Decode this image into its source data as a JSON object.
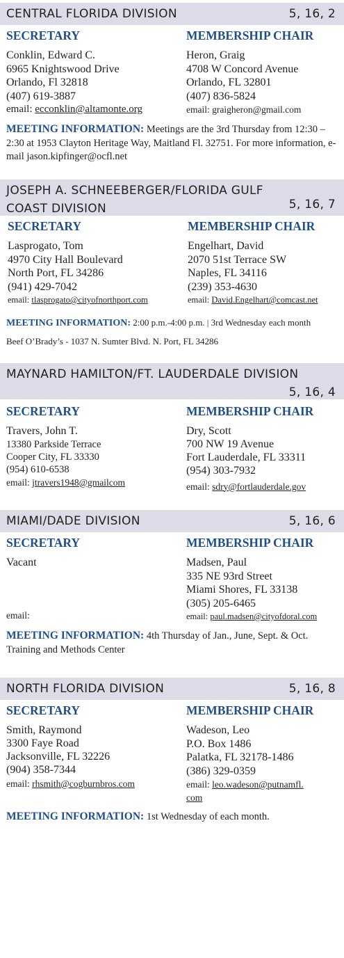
{
  "divisions": [
    {
      "name": "CENTRAL FLORIDA DIVISION",
      "codes": "5, 16, 2",
      "secretary_heading": "SECRETARY",
      "chair_heading": "MEMBERSHIP CHAIR",
      "secretary": [
        "Conklin, Edward C.",
        "6965 Knightswood Drive",
        "Orlando, Fl 32818",
        "(407) 619-3887"
      ],
      "secretary_email_label": "email: ",
      "secretary_email": "ecconklin@altamonte.org",
      "chair": [
        "Heron, Graig",
        "4708 W Concord Avenue",
        "Orlando, FL 32801",
        "(407) 836-5824"
      ],
      "chair_email_label": "email: ",
      "chair_email": "graigheron@gmail.com",
      "meeting_label": "MEETING INFORMATION:",
      "meeting_text": "Meetings are the 3rd Thursday from 12:30 – 2:30 at 1953 Clayton Heritage Way, Maitland Fl. 32751. For more information, e-mail jason.kipfinger@ocfl.net"
    },
    {
      "name": "JOSEPH A. SCHNEEBERGER/FLORIDA GULF COAST DIVISION",
      "name_line1": "JOSEPH A. SCHNEEBERGER/FLORIDA GULF",
      "name_line2": "COAST DIVISION",
      "codes": "5, 16, 7",
      "secretary_heading": "SECRETARY",
      "chair_heading": "MEMBERSHIP CHAIR",
      "secretary": [
        "Lasprogato, Tom",
        "4970 City Hall Boulevard",
        "North Port, FL 34286",
        "(941) 429-7042"
      ],
      "secretary_email_label": "email: ",
      "secretary_email": "tlasprogato@cityofnorthport.com",
      "chair": [
        "Engelhart, David",
        "2070 51st Terrace SW",
        "Naples, FL 34116",
        "(239) 353-4630"
      ],
      "chair_email_label": "email: ",
      "chair_email": "David.Engelhart@comcast.net",
      "meeting_label": "MEETING INFORMATION:",
      "meeting_text": "2:00 p.m.-4:00 p.m. | 3rd Wednesday each month",
      "meeting_extra": "Beef  O’Brady’s - 1037 N. Sumter Blvd. N. Port, FL 34286"
    },
    {
      "name": "MAYNARD HAMILTON/FT. LAUDERDALE DIVISION",
      "codes": "5, 16, 4",
      "secretary_heading": "SECRETARY",
      "chair_heading": "MEMBERSHIP CHAIR",
      "secretary_name": "Travers, John T.",
      "secretary": [
        "13380 Parkside Terrace",
        "Cooper City, FL 33330",
        "(954) 610-6538"
      ],
      "secretary_email_label": "email: ",
      "secretary_email": "jtravers1948@gmailcom",
      "chair": [
        "Dry, Scott",
        "700 NW 19 Avenue",
        "Fort Lauderdale, FL 33311",
        "(954) 303-7932"
      ],
      "chair_email_label": "email: ",
      "chair_email": "sdry@fortlauderdale.gov"
    },
    {
      "name": "MIAMI/DADE DIVISION",
      "codes": "5, 16, 6",
      "secretary_heading": "SECRETARY",
      "chair_heading": "MEMBERSHIP CHAIR",
      "secretary": [
        "Vacant"
      ],
      "secretary_email_label": "email:",
      "chair": [
        "Madsen, Paul",
        "335 NE 93rd Street",
        "Miami Shores, FL 33138",
        "(305) 205-6465"
      ],
      "chair_email_label": "email:  ",
      "chair_email": "paul.madsen@cityofdoral.com",
      "meeting_label": "MEETING INFORMATION:",
      "meeting_text": "4th Thursday of Jan., June, Sept. & Oct. Training and Methods Center"
    },
    {
      "name": "NORTH FLORIDA DIVISION",
      "codes": "5, 16, 8",
      "secretary_heading": "SECRETARY",
      "chair_heading": "MEMBERSHIP CHAIR",
      "secretary": [
        "Smith, Raymond",
        "3300 Faye Road",
        "Jacksonville, FL 32226",
        "(904) 358-7344"
      ],
      "secretary_email_label": "email: ",
      "secretary_email": "rhsmith@cogburnbros.com",
      "chair": [
        "Wadeson, Leo",
        "P.O. Box 1486",
        "Palatka, FL 32178-1486",
        "(386) 329-0359"
      ],
      "chair_email_label": "email: ",
      "chair_email": "leo.wadeson@putnamfl.",
      "chair_email_line2": "com",
      "meeting_label": "MEETING INFORMATION:",
      "meeting_text": "1st Wednesday of each month."
    }
  ]
}
